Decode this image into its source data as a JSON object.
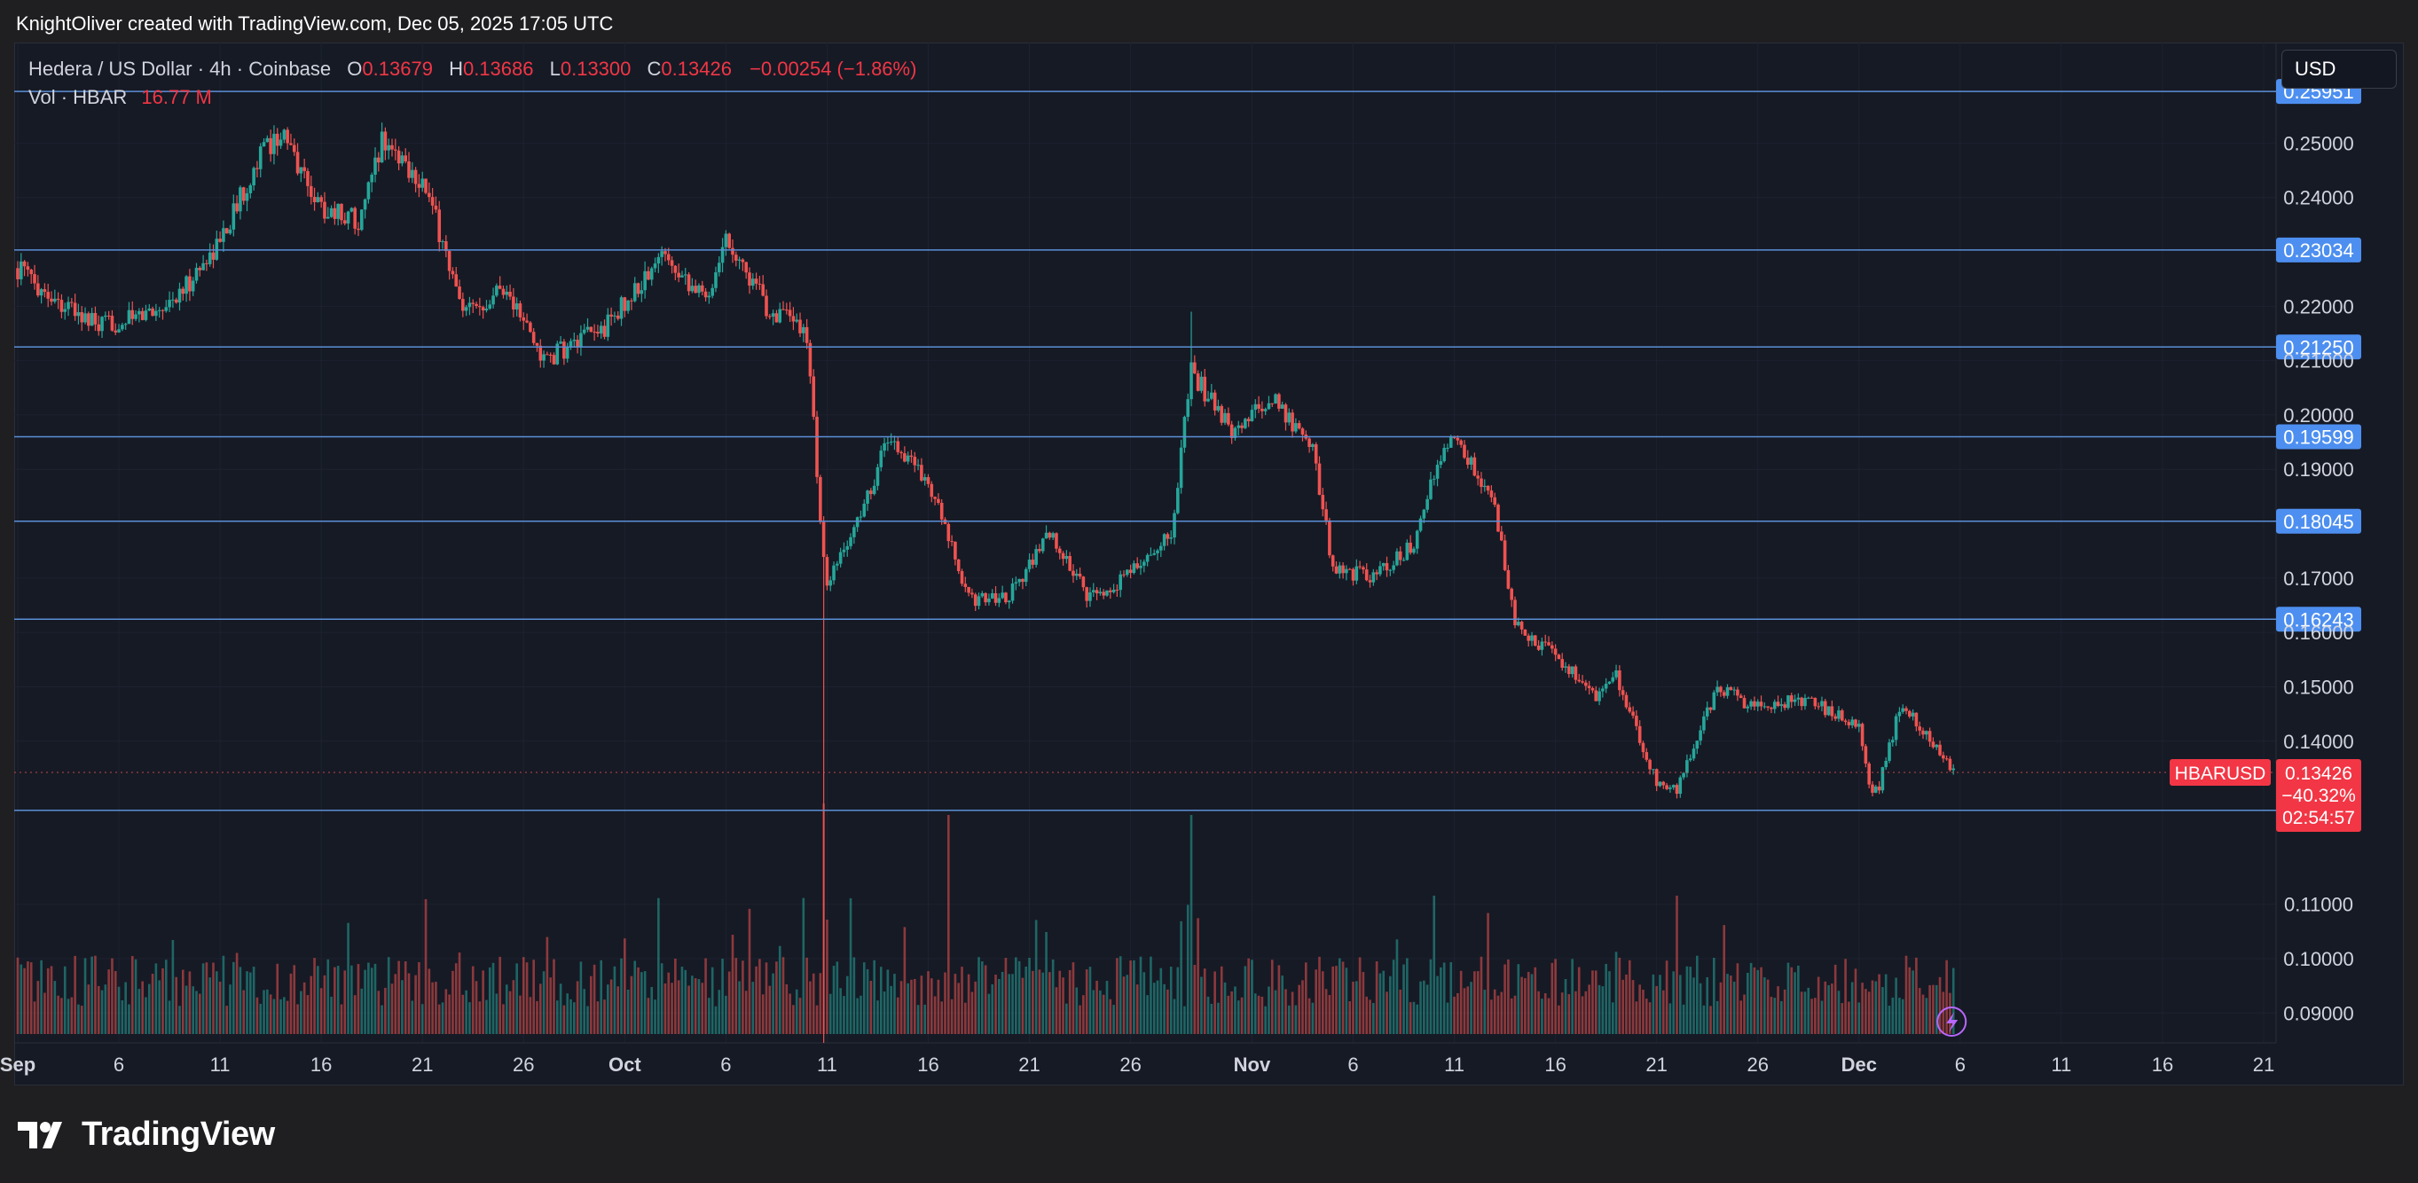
{
  "header": {
    "attribution": "KnightOliver created with TradingView.com, Dec 05, 2025 17:05 UTC"
  },
  "legend": {
    "symbol": "Hedera / US Dollar · 4h · Coinbase",
    "open_label": "O",
    "open": "0.13679",
    "high_label": "H",
    "high": "0.13686",
    "low_label": "L",
    "low": "0.13300",
    "close_label": "C",
    "close": "0.13426",
    "change": "−0.00254 (−1.86%)",
    "volume_label": "Vol · HBAR",
    "volume": "16.77 M"
  },
  "currency": "USD",
  "brand": "TradingView",
  "colors": {
    "up": "#26a69a",
    "down": "#ef5350",
    "hline": "#5b8fd6",
    "label_blue": "#4d8ff0",
    "label_red": "#f23645",
    "bg": "#161a25"
  },
  "icons": [
    "tradingview-logo-icon",
    "lightning-icon"
  ],
  "chart_data": {
    "type": "candlestick",
    "interval": "4h",
    "ylim": [
      0.0845,
      0.2685
    ],
    "y_ticks": [
      "0.25000",
      "0.24000",
      "0.22000",
      "0.21000",
      "0.20000",
      "0.19000",
      "0.17000",
      "0.16000",
      "0.15000",
      "0.14000",
      "0.11000",
      "0.10000",
      "0.09000"
    ],
    "x_axis": {
      "start": "2025-09-01",
      "end": "2025-12-21",
      "ticks": [
        {
          "date": "2025-09-01",
          "label": "Sep",
          "bold": true
        },
        {
          "date": "2025-09-06",
          "label": "6"
        },
        {
          "date": "2025-09-11",
          "label": "11"
        },
        {
          "date": "2025-09-16",
          "label": "16"
        },
        {
          "date": "2025-09-21",
          "label": "21"
        },
        {
          "date": "2025-09-26",
          "label": "26"
        },
        {
          "date": "2025-10-01",
          "label": "Oct",
          "bold": true
        },
        {
          "date": "2025-10-06",
          "label": "6"
        },
        {
          "date": "2025-10-11",
          "label": "11"
        },
        {
          "date": "2025-10-16",
          "label": "16"
        },
        {
          "date": "2025-10-21",
          "label": "21"
        },
        {
          "date": "2025-10-26",
          "label": "26"
        },
        {
          "date": "2025-11-01",
          "label": "Nov",
          "bold": true
        },
        {
          "date": "2025-11-06",
          "label": "6"
        },
        {
          "date": "2025-11-11",
          "label": "11"
        },
        {
          "date": "2025-11-16",
          "label": "16"
        },
        {
          "date": "2025-11-21",
          "label": "21"
        },
        {
          "date": "2025-11-26",
          "label": "26"
        },
        {
          "date": "2025-12-01",
          "label": "Dec",
          "bold": true
        },
        {
          "date": "2025-12-06",
          "label": "6"
        },
        {
          "date": "2025-12-11",
          "label": "11"
        },
        {
          "date": "2025-12-16",
          "label": "16"
        },
        {
          "date": "2025-12-21",
          "label": "21"
        }
      ]
    },
    "horizontal_lines": [
      "0.25951",
      "0.23034",
      "0.21250",
      "0.19599",
      "0.18045",
      "0.16243",
      "0.12728"
    ],
    "last_price": {
      "symbol": "HBARUSD",
      "price": "0.13426",
      "change": "−40.32%",
      "countdown": "02:54:57"
    },
    "price_path": [
      {
        "date": "2025-09-01",
        "p": 0.227
      },
      {
        "date": "2025-09-03",
        "p": 0.221
      },
      {
        "date": "2025-09-05",
        "p": 0.216
      },
      {
        "date": "2025-09-07",
        "p": 0.218
      },
      {
        "date": "2025-09-09",
        "p": 0.222
      },
      {
        "date": "2025-09-11",
        "p": 0.232
      },
      {
        "date": "2025-09-13",
        "p": 0.248
      },
      {
        "date": "2025-09-14",
        "p": 0.252
      },
      {
        "date": "2025-09-16",
        "p": 0.238
      },
      {
        "date": "2025-09-18",
        "p": 0.236
      },
      {
        "date": "2025-09-19",
        "p": 0.251
      },
      {
        "date": "2025-09-21",
        "p": 0.243
      },
      {
        "date": "2025-09-22",
        "p": 0.232
      },
      {
        "date": "2025-09-23",
        "p": 0.218
      },
      {
        "date": "2025-09-25",
        "p": 0.224
      },
      {
        "date": "2025-09-27",
        "p": 0.21
      },
      {
        "date": "2025-09-30",
        "p": 0.216
      },
      {
        "date": "2025-10-02",
        "p": 0.225
      },
      {
        "date": "2025-10-03",
        "p": 0.23
      },
      {
        "date": "2025-10-05",
        "p": 0.221
      },
      {
        "date": "2025-10-06",
        "p": 0.233
      },
      {
        "date": "2025-10-08",
        "p": 0.22
      },
      {
        "date": "2025-10-10",
        "p": 0.215
      },
      {
        "date": "2025-10-10T20",
        "p": 0.173
      },
      {
        "date": "2025-10-11",
        "p": 0.168
      },
      {
        "date": "2025-10-13",
        "p": 0.185
      },
      {
        "date": "2025-10-14",
        "p": 0.196
      },
      {
        "date": "2025-10-16",
        "p": 0.188
      },
      {
        "date": "2025-10-18",
        "p": 0.166
      },
      {
        "date": "2025-10-20",
        "p": 0.167
      },
      {
        "date": "2025-10-22",
        "p": 0.178
      },
      {
        "date": "2025-10-24",
        "p": 0.166
      },
      {
        "date": "2025-10-26",
        "p": 0.171
      },
      {
        "date": "2025-10-28",
        "p": 0.178
      },
      {
        "date": "2025-10-29",
        "p": 0.208
      },
      {
        "date": "2025-10-31",
        "p": 0.197
      },
      {
        "date": "2025-11-02",
        "p": 0.203
      },
      {
        "date": "2025-11-04",
        "p": 0.194
      },
      {
        "date": "2025-11-05",
        "p": 0.172
      },
      {
        "date": "2025-11-07",
        "p": 0.17
      },
      {
        "date": "2025-11-09",
        "p": 0.176
      },
      {
        "date": "2025-11-10",
        "p": 0.189
      },
      {
        "date": "2025-11-11",
        "p": 0.196
      },
      {
        "date": "2025-11-13",
        "p": 0.183
      },
      {
        "date": "2025-11-14",
        "p": 0.161
      },
      {
        "date": "2025-11-16",
        "p": 0.156
      },
      {
        "date": "2025-11-18",
        "p": 0.148
      },
      {
        "date": "2025-11-19",
        "p": 0.152
      },
      {
        "date": "2025-11-21",
        "p": 0.132
      },
      {
        "date": "2025-11-22",
        "p": 0.131
      },
      {
        "date": "2025-11-24",
        "p": 0.15
      },
      {
        "date": "2025-11-26",
        "p": 0.146
      },
      {
        "date": "2025-11-28",
        "p": 0.148
      },
      {
        "date": "2025-11-30",
        "p": 0.145
      },
      {
        "date": "2025-12-01",
        "p": 0.142
      },
      {
        "date": "2025-12-01T12",
        "p": 0.131
      },
      {
        "date": "2025-12-02",
        "p": 0.132
      },
      {
        "date": "2025-12-03",
        "p": 0.146
      },
      {
        "date": "2025-12-04",
        "p": 0.143
      },
      {
        "date": "2025-12-05T16",
        "p": 0.134
      }
    ],
    "notable_wicks": [
      {
        "date": "2025-10-10T20",
        "low": 0.0845
      },
      {
        "date": "2025-10-29",
        "high": 0.219
      },
      {
        "date": "2025-10-06",
        "high": 0.234
      }
    ],
    "volume_spikes": [
      {
        "date": "2025-10-10T20",
        "rel": 1.0
      },
      {
        "date": "2025-10-17",
        "rel": 0.95
      },
      {
        "date": "2025-10-29",
        "rel": 0.95
      },
      {
        "date": "2025-11-10",
        "rel": 0.6
      },
      {
        "date": "2025-11-22",
        "rel": 0.6
      }
    ]
  }
}
